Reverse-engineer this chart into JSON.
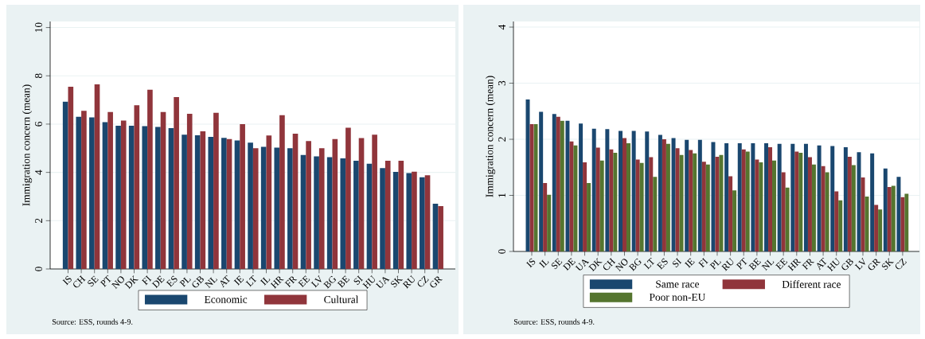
{
  "chart_data": [
    {
      "type": "bar",
      "ylabel": "Immigration concern (mean)",
      "categories": [
        "IS",
        "CH",
        "SE",
        "PT",
        "NO",
        "DK",
        "FI",
        "DE",
        "ES",
        "PL",
        "GB",
        "NL",
        "AT",
        "IE",
        "LT",
        "IL",
        "HR",
        "FR",
        "EE",
        "LV",
        "BG",
        "BE",
        "SI",
        "HU",
        "UA",
        "SK",
        "RU",
        "CZ",
        "GR"
      ],
      "series": [
        {
          "name": "Economic",
          "color": "#1a476f",
          "values": [
            6.93,
            6.3,
            6.28,
            6.08,
            5.93,
            5.93,
            5.92,
            5.88,
            5.83,
            5.56,
            5.54,
            5.47,
            5.43,
            5.32,
            5.23,
            5.06,
            5.03,
            5.0,
            4.72,
            4.66,
            4.63,
            4.58,
            4.48,
            4.36,
            4.18,
            4.02,
            3.97,
            3.8,
            2.7
          ]
        },
        {
          "name": "Cultural",
          "color": "#90353b",
          "values": [
            7.55,
            6.55,
            7.65,
            6.5,
            6.15,
            6.78,
            7.42,
            6.5,
            7.12,
            6.43,
            5.7,
            6.47,
            5.38,
            6.0,
            5.0,
            5.53,
            6.37,
            5.6,
            5.3,
            5.0,
            5.38,
            5.85,
            5.42,
            5.56,
            4.48,
            4.48,
            4.03,
            3.88,
            2.6
          ]
        }
      ],
      "ylim": [
        0,
        10.25
      ],
      "yticks": [
        0,
        2,
        4,
        6,
        8,
        10
      ],
      "grid": "y",
      "legend": "bottom",
      "annotations": [
        "Source: ESS, rounds 4-9."
      ]
    },
    {
      "type": "bar",
      "ylabel": "Immigration concern (mean)",
      "categories": [
        "IS",
        "IL",
        "SE",
        "DE",
        "UA",
        "DK",
        "CH",
        "NO",
        "BG",
        "LT",
        "ES",
        "SI",
        "IE",
        "FI",
        "PL",
        "RU",
        "PT",
        "BE",
        "NL",
        "EE",
        "HR",
        "FR",
        "AT",
        "HU",
        "GB",
        "LV",
        "GR",
        "SK",
        "CZ"
      ],
      "series": [
        {
          "name": "Same race",
          "color": "#1a476f",
          "values": [
            2.71,
            2.49,
            2.45,
            2.33,
            2.28,
            2.19,
            2.18,
            2.15,
            2.15,
            2.14,
            2.08,
            2.02,
            1.99,
            1.99,
            1.95,
            1.93,
            1.93,
            1.93,
            1.93,
            1.92,
            1.92,
            1.92,
            1.89,
            1.88,
            1.86,
            1.77,
            1.75,
            1.48,
            1.33
          ]
        },
        {
          "name": "Different race",
          "color": "#90353b",
          "values": [
            2.27,
            1.22,
            2.4,
            1.96,
            1.59,
            1.85,
            1.82,
            2.02,
            1.64,
            1.68,
            2.0,
            1.84,
            1.81,
            1.6,
            1.69,
            1.34,
            1.82,
            1.64,
            1.86,
            1.41,
            1.78,
            1.68,
            1.52,
            1.07,
            1.69,
            1.32,
            0.83,
            1.15,
            0.97
          ]
        },
        {
          "name": "Poor non-EU",
          "color": "#55752f",
          "values": [
            2.27,
            1.01,
            2.33,
            1.89,
            1.22,
            1.62,
            1.76,
            1.93,
            1.58,
            1.33,
            1.92,
            1.72,
            1.75,
            1.55,
            1.72,
            1.09,
            1.78,
            1.59,
            1.62,
            1.14,
            1.76,
            1.55,
            1.41,
            0.91,
            1.54,
            0.98,
            0.75,
            1.17,
            1.03
          ]
        }
      ],
      "ylim": [
        0,
        4.1
      ],
      "yticks": [
        0,
        1,
        2,
        3,
        4
      ],
      "grid": "y",
      "legend": "bottom",
      "annotations": [
        "Source: ESS, rounds 4-9."
      ]
    }
  ]
}
